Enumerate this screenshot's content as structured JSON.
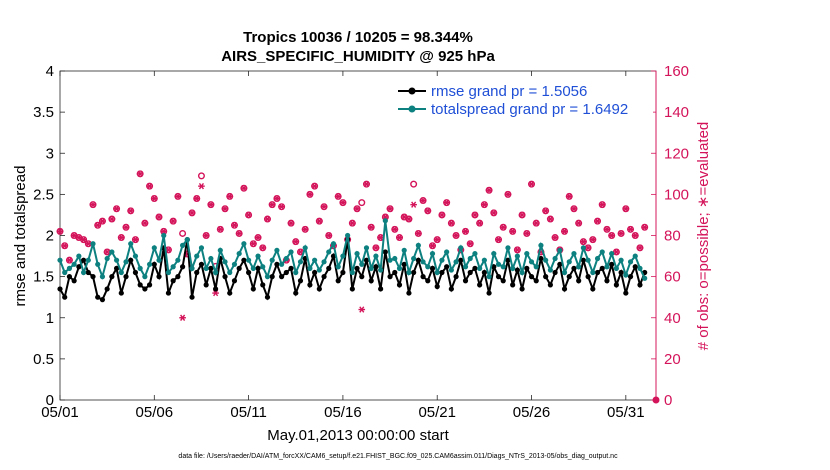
{
  "colors": {
    "rmse": "#000000",
    "spread": "#0d8080",
    "obs": "#d4145a",
    "legend_text": "#1f4fd6",
    "axis": "#262626"
  },
  "chart_data": {
    "type": "line",
    "title": "Tropics 10036 / 10205 = 98.344%",
    "subtitle": "AIRS_SPECIFIC_HUMIDITY @ 925 hPa",
    "xlabel": "May.01,2013 00:00:00 start",
    "ylabel_left": "rmse and totalspread",
    "ylabel_right": "# of obs: o=possible; ∗=evaluated",
    "xlim": [
      0,
      31.6
    ],
    "ylim_left": [
      0,
      4
    ],
    "ylim_right": [
      0,
      160
    ],
    "x_ticks": [
      0,
      5,
      10,
      15,
      20,
      25,
      30
    ],
    "x_tick_labels": [
      "05/01",
      "05/06",
      "05/11",
      "05/16",
      "05/21",
      "05/26",
      "05/31"
    ],
    "y_ticks_left": [
      "0",
      "0.5",
      "1",
      "1.5",
      "2",
      "2.5",
      "3",
      "3.5",
      "4"
    ],
    "y_ticks_right": [
      "0",
      "20",
      "40",
      "60",
      "80",
      "100",
      "120",
      "140",
      "160"
    ],
    "legend": [
      {
        "name": "rmse grand pr = 1.5056",
        "series": "rmse"
      },
      {
        "name": "totalspread grand pr = 1.6492",
        "series": "spread"
      }
    ],
    "x_step_days": 0.25,
    "series": [
      {
        "name": "rmse",
        "axis": "left",
        "values": [
          1.35,
          1.25,
          1.5,
          1.45,
          1.62,
          1.7,
          1.55,
          1.5,
          1.25,
          1.22,
          1.35,
          1.5,
          1.6,
          1.3,
          1.5,
          1.7,
          1.55,
          1.4,
          1.35,
          1.4,
          1.65,
          1.5,
          1.85,
          1.3,
          1.45,
          1.5,
          1.62,
          1.95,
          1.25,
          1.55,
          1.65,
          1.4,
          1.6,
          1.35,
          1.72,
          1.5,
          1.3,
          1.45,
          1.6,
          1.7,
          1.55,
          1.35,
          1.6,
          1.4,
          1.25,
          1.5,
          1.65,
          1.5,
          1.55,
          1.6,
          1.3,
          1.45,
          1.72,
          1.4,
          1.55,
          1.35,
          1.5,
          1.6,
          1.75,
          1.45,
          1.55,
          1.95,
          1.35,
          1.6,
          1.5,
          1.7,
          1.45,
          1.62,
          1.35,
          1.8,
          1.5,
          1.55,
          1.4,
          1.65,
          1.3,
          1.55,
          1.7,
          1.5,
          1.45,
          1.6,
          1.38,
          1.55,
          1.62,
          1.35,
          1.5,
          1.7,
          1.45,
          1.55,
          1.6,
          1.4,
          1.55,
          1.3,
          1.62,
          1.5,
          1.45,
          1.7,
          1.4,
          1.58,
          1.35,
          1.6,
          1.5,
          1.45,
          1.72,
          1.5,
          1.4,
          1.55,
          1.65,
          1.35,
          1.5,
          1.6,
          1.45,
          1.7,
          1.5,
          1.35,
          1.55,
          1.6,
          1.45,
          1.65,
          1.4,
          1.55,
          1.3,
          1.5,
          1.62,
          1.4,
          1.55
        ]
      },
      {
        "name": "totalspread",
        "axis": "left",
        "values": [
          1.7,
          1.55,
          1.6,
          1.65,
          1.75,
          1.55,
          1.7,
          1.9,
          1.65,
          1.5,
          1.72,
          1.8,
          1.7,
          1.55,
          1.68,
          1.9,
          1.75,
          1.6,
          1.5,
          1.65,
          1.85,
          1.7,
          2.0,
          1.55,
          1.62,
          1.7,
          1.88,
          1.95,
          1.6,
          1.75,
          1.85,
          1.6,
          1.72,
          1.55,
          1.82,
          1.68,
          1.55,
          1.65,
          1.78,
          1.9,
          1.7,
          1.6,
          1.75,
          1.62,
          1.5,
          1.7,
          1.82,
          1.65,
          1.72,
          1.8,
          1.55,
          1.68,
          1.85,
          1.6,
          1.7,
          1.58,
          1.68,
          1.8,
          1.9,
          1.62,
          1.75,
          2.0,
          1.55,
          1.78,
          1.65,
          1.85,
          1.6,
          1.75,
          1.58,
          2.18,
          1.7,
          1.72,
          1.6,
          1.82,
          1.55,
          1.72,
          1.88,
          1.68,
          1.62,
          1.78,
          1.55,
          1.7,
          1.8,
          1.58,
          1.68,
          1.85,
          1.62,
          1.72,
          1.78,
          1.6,
          1.7,
          1.5,
          1.78,
          1.65,
          1.62,
          1.85,
          1.6,
          1.75,
          1.55,
          1.78,
          1.68,
          1.62,
          1.88,
          1.7,
          1.58,
          1.72,
          1.82,
          1.55,
          1.68,
          1.78,
          1.62,
          1.85,
          1.7,
          1.55,
          1.72,
          1.8,
          1.62,
          1.78,
          1.6,
          1.7,
          1.52,
          1.68,
          1.75,
          1.6,
          1.48
        ]
      },
      {
        "name": "obs_possible",
        "axis": "right",
        "values": [
          82,
          75,
          68,
          80,
          79,
          78,
          76,
          95,
          85,
          87,
          72,
          88,
          93,
          79,
          84,
          92,
          78,
          110,
          86,
          104,
          98,
          89,
          82,
          73,
          87,
          99,
          81,
          71,
          91,
          98,
          109,
          80,
          95,
          65,
          83,
          93,
          99,
          85,
          81,
          103,
          90,
          76,
          79,
          74,
          88,
          95,
          98,
          94,
          68,
          86,
          77,
          72,
          83,
          100,
          104,
          87,
          94,
          80,
          75,
          99,
          96,
          78,
          86,
          93,
          96,
          105,
          84,
          74,
          79,
          89,
          93,
          83,
          79,
          89,
          88,
          105,
          81,
          97,
          92,
          75,
          78,
          90,
          96,
          86,
          80,
          73,
          82,
          76,
          90,
          86,
          95,
          102,
          91,
          78,
          84,
          100,
          82,
          73,
          90,
          81,
          105,
          86,
          72,
          92,
          88,
          79,
          73,
          82,
          99,
          93,
          86,
          77,
          74,
          78,
          87,
          95,
          83,
          80,
          72,
          81,
          93,
          83,
          80,
          74,
          84
        ]
      },
      {
        "name": "obs_evaluated",
        "axis": "right",
        "values": [
          82,
          75,
          68,
          80,
          79,
          78,
          76,
          95,
          85,
          87,
          72,
          88,
          93,
          79,
          84,
          92,
          78,
          110,
          86,
          104,
          98,
          89,
          82,
          73,
          87,
          99,
          40,
          71,
          91,
          98,
          104,
          80,
          95,
          52,
          83,
          93,
          99,
          85,
          81,
          103,
          90,
          76,
          79,
          74,
          88,
          95,
          98,
          94,
          68,
          86,
          77,
          72,
          83,
          100,
          104,
          87,
          94,
          80,
          75,
          99,
          96,
          78,
          86,
          93,
          44,
          105,
          84,
          74,
          79,
          89,
          93,
          83,
          79,
          89,
          88,
          95,
          81,
          97,
          92,
          75,
          78,
          90,
          96,
          86,
          80,
          73,
          82,
          76,
          90,
          86,
          95,
          102,
          91,
          78,
          84,
          100,
          82,
          73,
          90,
          81,
          105,
          86,
          72,
          92,
          88,
          79,
          73,
          82,
          99,
          93,
          86,
          77,
          74,
          78,
          87,
          95,
          83,
          80,
          72,
          81,
          93,
          83,
          80,
          74,
          84
        ]
      }
    ]
  },
  "footer": "data file: /Users/raeder/DAI/ATM_forcXX/CAM6_setup/f.e21.FHIST_BGC.f09_025.CAM6assim.011/Diags_NTrS_2013-05/obs_diag_output.nc"
}
